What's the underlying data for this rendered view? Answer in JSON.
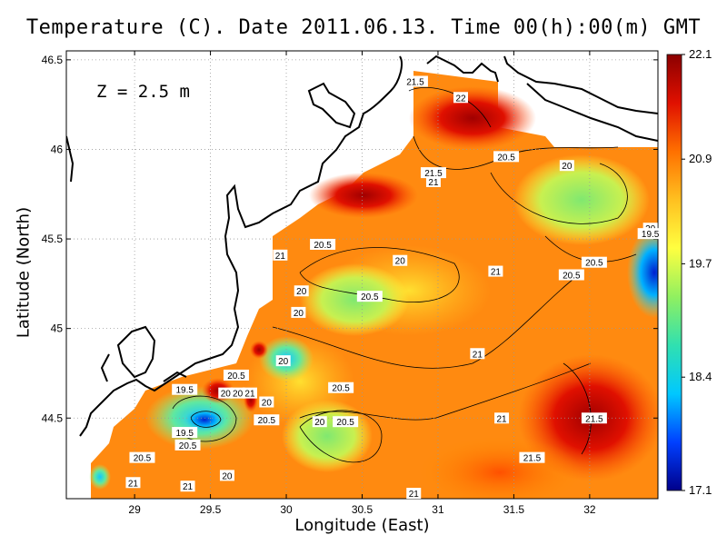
{
  "chart_data": {
    "type": "heatmap",
    "title": "Temperature (C). Date 2011.06.13. Time 00(h):00(m) GMT",
    "xlabel": "Longitude (East)",
    "ylabel": "Latitude (North)",
    "xlim": [
      28.55,
      32.45
    ],
    "ylim": [
      44.05,
      46.55
    ],
    "x_ticks": [
      "29",
      "29.5",
      "30",
      "30.5",
      "31",
      "31.5",
      "32"
    ],
    "y_ticks": [
      "44.5",
      "45",
      "45.5",
      "46",
      "46.5"
    ],
    "grid": true,
    "annotation": "Z = 2.5 m",
    "colorbar": {
      "ticks": [
        "22.1",
        "20.9",
        "19.7",
        "18.4",
        "17.1"
      ],
      "min": 17.1,
      "max": 22.1,
      "colors": [
        "#00008b",
        "#0040ff",
        "#00c8ff",
        "#30e0b0",
        "#90f060",
        "#ffff40",
        "#ffc020",
        "#ff7000",
        "#e01000",
        "#8b0000"
      ]
    },
    "contour_labels": [
      {
        "text": "21.5",
        "lon": 30.85,
        "lat": 46.38
      },
      {
        "text": "22",
        "lon": 31.15,
        "lat": 46.29
      },
      {
        "text": "21.5",
        "lon": 30.97,
        "lat": 45.87
      },
      {
        "text": "21",
        "lon": 30.97,
        "lat": 45.82
      },
      {
        "text": "20.5",
        "lon": 31.45,
        "lat": 45.96
      },
      {
        "text": "20",
        "lon": 31.85,
        "lat": 45.91
      },
      {
        "text": "21",
        "lon": 29.96,
        "lat": 45.41
      },
      {
        "text": "20.5",
        "lon": 30.24,
        "lat": 45.47
      },
      {
        "text": "20",
        "lon": 30.75,
        "lat": 45.38
      },
      {
        "text": "21",
        "lon": 31.38,
        "lat": 45.32
      },
      {
        "text": "20.5",
        "lon": 31.88,
        "lat": 45.3
      },
      {
        "text": "20.5",
        "lon": 32.03,
        "lat": 45.37
      },
      {
        "text": "20",
        "lon": 32.4,
        "lat": 45.56
      },
      {
        "text": "19.5",
        "lon": 32.4,
        "lat": 45.53
      },
      {
        "text": "20",
        "lon": 30.1,
        "lat": 45.21
      },
      {
        "text": "20.5",
        "lon": 30.55,
        "lat": 45.18
      },
      {
        "text": "20",
        "lon": 30.08,
        "lat": 45.09
      },
      {
        "text": "20",
        "lon": 29.98,
        "lat": 44.82
      },
      {
        "text": "21",
        "lon": 31.26,
        "lat": 44.86
      },
      {
        "text": "20.5",
        "lon": 29.67,
        "lat": 44.74
      },
      {
        "text": "20.5",
        "lon": 30.36,
        "lat": 44.67
      },
      {
        "text": "19.5",
        "lon": 29.33,
        "lat": 44.66
      },
      {
        "text": "20",
        "lon": 29.6,
        "lat": 44.64
      },
      {
        "text": "20",
        "lon": 29.68,
        "lat": 44.64
      },
      {
        "text": "21",
        "lon": 29.76,
        "lat": 44.64
      },
      {
        "text": "20",
        "lon": 29.87,
        "lat": 44.59
      },
      {
        "text": "20.5",
        "lon": 29.87,
        "lat": 44.49
      },
      {
        "text": "20",
        "lon": 30.22,
        "lat": 44.48
      },
      {
        "text": "20.5",
        "lon": 30.39,
        "lat": 44.48
      },
      {
        "text": "21",
        "lon": 31.42,
        "lat": 44.5
      },
      {
        "text": "21.5",
        "lon": 32.03,
        "lat": 44.5
      },
      {
        "text": "19.5",
        "lon": 29.33,
        "lat": 44.42
      },
      {
        "text": "20.5",
        "lon": 29.35,
        "lat": 44.35
      },
      {
        "text": "20.5",
        "lon": 29.05,
        "lat": 44.28
      },
      {
        "text": "20",
        "lon": 29.61,
        "lat": 44.18
      },
      {
        "text": "21",
        "lon": 28.99,
        "lat": 44.14
      },
      {
        "text": "21",
        "lon": 29.35,
        "lat": 44.12
      },
      {
        "text": "21.5",
        "lon": 31.62,
        "lat": 44.28
      },
      {
        "text": "21",
        "lon": 30.84,
        "lat": 44.08
      }
    ]
  }
}
